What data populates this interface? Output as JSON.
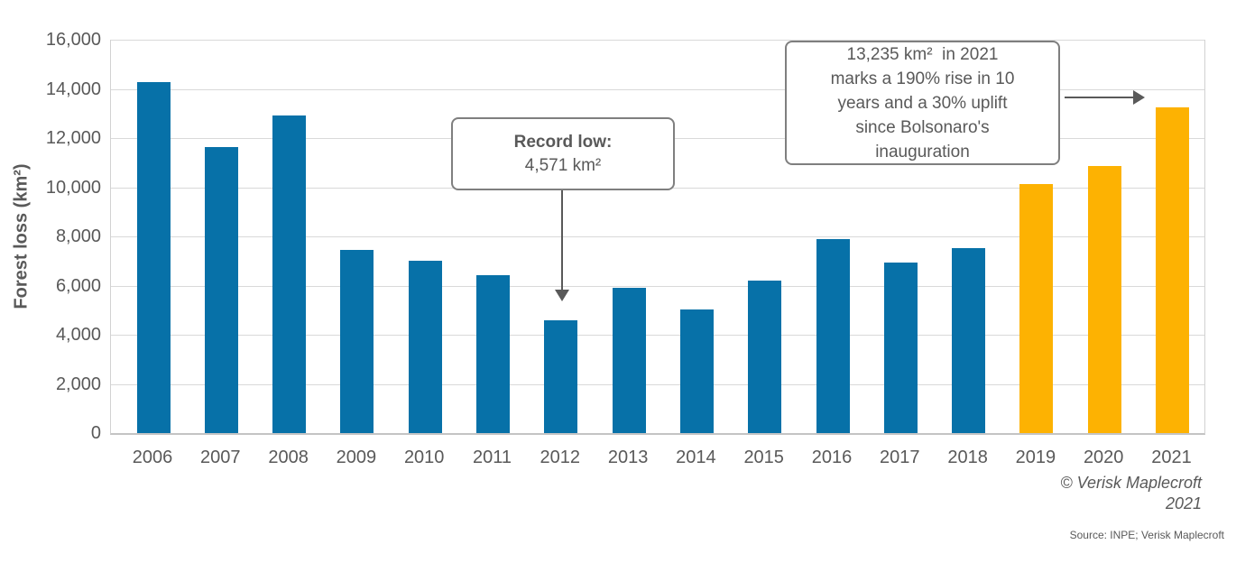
{
  "colors": {
    "bar_blue": "#0771A8",
    "bar_orange": "#FDB202",
    "gridline": "#D9D9D9",
    "axis_line": "#C4C4C4",
    "text_gray": "#595959",
    "callout_border": "#7F7F7F",
    "arrow": "#595959",
    "background": "#FFFFFF"
  },
  "chart_data": {
    "type": "bar",
    "title": "",
    "xlabel": "",
    "ylabel": "Forest loss (km²)",
    "ylim": [
      0,
      16000
    ],
    "ytick_step": 2000,
    "grid": true,
    "legend_position": "none",
    "categories": [
      "2006",
      "2007",
      "2008",
      "2009",
      "2010",
      "2011",
      "2012",
      "2013",
      "2014",
      "2015",
      "2016",
      "2017",
      "2018",
      "2019",
      "2020",
      "2021"
    ],
    "values": [
      14286,
      11651,
      12911,
      7464,
      7000,
      6418,
      4571,
      5891,
      5012,
      6207,
      7893,
      6947,
      7536,
      10129,
      10851,
      13235
    ],
    "bar_colors": [
      "#0771A8",
      "#0771A8",
      "#0771A8",
      "#0771A8",
      "#0771A8",
      "#0771A8",
      "#0771A8",
      "#0771A8",
      "#0771A8",
      "#0771A8",
      "#0771A8",
      "#0771A8",
      "#0771A8",
      "#FDB202",
      "#FDB202",
      "#FDB202"
    ]
  },
  "annotations": {
    "record_low": {
      "title": "Record low:",
      "value": "4,571 km²",
      "target_year": "2012"
    },
    "rise_2021": {
      "lines": [
        "13,235 km²  in 2021",
        "marks a 190% rise in 10",
        "years and a 30% uplift",
        "since Bolsonaro's",
        "inauguration"
      ],
      "target_year": "2021"
    }
  },
  "footer": {
    "copyright_line1": "© Verisk Maplecroft",
    "copyright_line2": "2021",
    "source": "Source: INPE; Verisk Maplecroft"
  }
}
